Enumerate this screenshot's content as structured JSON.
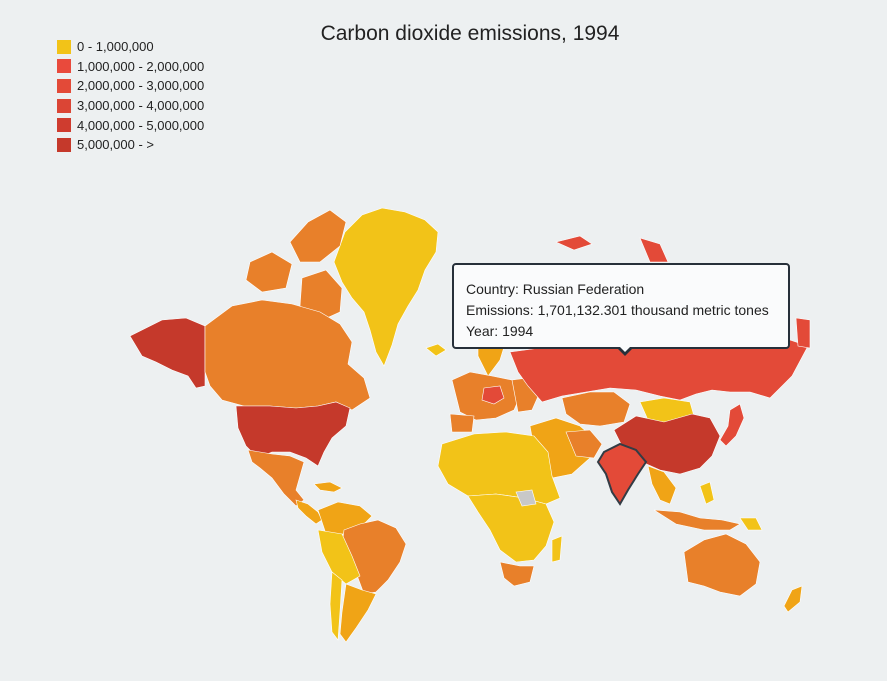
{
  "title": "Carbon dioxide emissions, 1994",
  "legend": {
    "items": [
      {
        "label": "0 - 1,000,000",
        "color": "#f2c318"
      },
      {
        "label": "1,000,000 - 2,000,000",
        "color": "#e94a3c"
      },
      {
        "label": "2,000,000 - 3,000,000",
        "color": "#e34a38"
      },
      {
        "label": "3,000,000 - 4,000,000",
        "color": "#db4535"
      },
      {
        "label": "4,000,000 - 5,000,000",
        "color": "#cf3c2f"
      },
      {
        "label": "5,000,000 - >",
        "color": "#c5392b"
      }
    ]
  },
  "tooltip": {
    "country": "Country: Russian Federation",
    "emissions": "Emissions: 1,701,132.301 thousand metric tones",
    "year": "Year: 1994"
  },
  "colors": {
    "background": "#edf0f1",
    "low": "#f2c318",
    "mid_low": "#f0a416",
    "mid": "#e8802a",
    "high": "#e34a38",
    "very_high": "#c5392b",
    "no_data": "#c8c8c8",
    "highlight_stroke": "#333c45"
  }
}
